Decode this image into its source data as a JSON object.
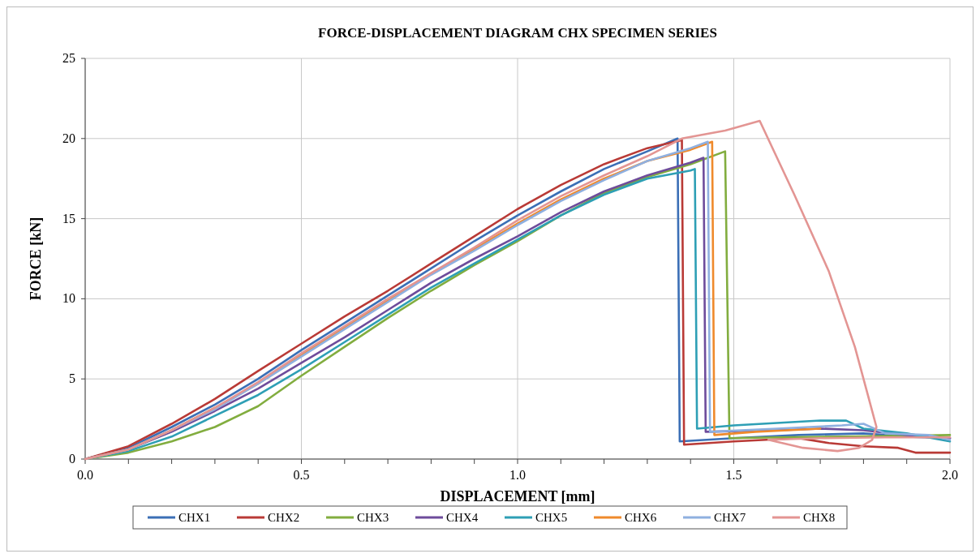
{
  "chart_data": {
    "type": "line",
    "title": "FORCE-DISPLACEMENT DIAGRAM CHX  SPECIMEN SERIES",
    "xlabel": "DISPLACEMENT [mm]",
    "ylabel": "FORCE  [kN]",
    "xlim": [
      0,
      2
    ],
    "ylim": [
      0,
      25
    ],
    "xticks": [
      {
        "value": 0,
        "label": "0.0"
      },
      {
        "value": 0.1,
        "label": null
      },
      {
        "value": 0.2,
        "label": null
      },
      {
        "value": 0.3,
        "label": null
      },
      {
        "value": 0.4,
        "label": null
      },
      {
        "value": 0.5,
        "label": "0.5"
      },
      {
        "value": 0.6,
        "label": null
      },
      {
        "value": 0.7,
        "label": null
      },
      {
        "value": 0.8,
        "label": null
      },
      {
        "value": 0.9,
        "label": null
      },
      {
        "value": 1,
        "label": "1.0"
      },
      {
        "value": 1.1,
        "label": null
      },
      {
        "value": 1.2,
        "label": null
      },
      {
        "value": 1.3,
        "label": null
      },
      {
        "value": 1.4,
        "label": null
      },
      {
        "value": 1.5,
        "label": "1.5"
      },
      {
        "value": 1.6,
        "label": null
      },
      {
        "value": 1.7,
        "label": null
      },
      {
        "value": 1.8,
        "label": null
      },
      {
        "value": 1.9,
        "label": null
      },
      {
        "value": 2,
        "label": "2.0"
      }
    ],
    "yticks": [
      0,
      5,
      10,
      15,
      20,
      25
    ],
    "grid": true,
    "legend": "bottom",
    "line_style": "solid",
    "series": [
      {
        "name": "CHX1",
        "color": "#3b6fb6",
        "x": [
          0,
          0.1,
          0.2,
          0.3,
          0.4,
          0.5,
          0.6,
          0.7,
          0.8,
          0.9,
          1.0,
          1.1,
          1.2,
          1.3,
          1.37,
          1.375,
          1.5,
          1.65,
          1.8,
          1.9,
          2.0
        ],
        "values": [
          0,
          0.7,
          2.0,
          3.4,
          5.0,
          6.8,
          8.5,
          10.2,
          11.9,
          13.6,
          15.2,
          16.7,
          18.1,
          19.2,
          20.0,
          1.1,
          1.3,
          1.5,
          1.6,
          1.4,
          1.3
        ]
      },
      {
        "name": "CHX2",
        "color": "#b93a36",
        "x": [
          0,
          0.1,
          0.2,
          0.3,
          0.4,
          0.5,
          0.6,
          0.7,
          0.8,
          0.9,
          1.0,
          1.1,
          1.2,
          1.3,
          1.38,
          1.385,
          1.5,
          1.65,
          1.72,
          1.8,
          1.88,
          1.92,
          2.0
        ],
        "values": [
          0,
          0.8,
          2.2,
          3.75,
          5.5,
          7.2,
          8.9,
          10.5,
          12.2,
          13.9,
          15.6,
          17.1,
          18.4,
          19.4,
          19.9,
          0.9,
          1.1,
          1.3,
          1.0,
          0.8,
          0.7,
          0.4,
          0.4
        ]
      },
      {
        "name": "CHX3",
        "color": "#82ad3f",
        "x": [
          0,
          0.1,
          0.2,
          0.3,
          0.4,
          0.5,
          0.6,
          0.7,
          0.8,
          0.9,
          1.0,
          1.1,
          1.2,
          1.3,
          1.4,
          1.48,
          1.49,
          1.6,
          1.75,
          1.9,
          2.0
        ],
        "values": [
          0,
          0.4,
          1.1,
          2.0,
          3.3,
          5.2,
          7.0,
          8.8,
          10.5,
          12.1,
          13.6,
          15.2,
          16.6,
          17.6,
          18.4,
          19.2,
          1.3,
          1.35,
          1.4,
          1.45,
          1.5
        ]
      },
      {
        "name": "CHX4",
        "color": "#6e4c9b",
        "x": [
          0,
          0.1,
          0.2,
          0.3,
          0.4,
          0.5,
          0.6,
          0.7,
          0.8,
          0.9,
          1.0,
          1.1,
          1.2,
          1.3,
          1.4,
          1.43,
          1.435,
          1.6,
          1.7,
          1.8,
          1.9,
          2.0
        ],
        "values": [
          0,
          0.6,
          1.7,
          3.0,
          4.4,
          6.0,
          7.6,
          9.3,
          11.0,
          12.5,
          13.9,
          15.4,
          16.7,
          17.7,
          18.5,
          18.8,
          1.7,
          1.8,
          1.9,
          1.8,
          1.5,
          1.3
        ]
      },
      {
        "name": "CHX5",
        "color": "#2e9fb5",
        "x": [
          0,
          0.1,
          0.2,
          0.3,
          0.4,
          0.5,
          0.6,
          0.7,
          0.8,
          0.9,
          1.0,
          1.1,
          1.2,
          1.3,
          1.4,
          1.41,
          1.415,
          1.5,
          1.6,
          1.7,
          1.76,
          1.8,
          1.9,
          2.0
        ],
        "values": [
          0,
          0.5,
          1.4,
          2.7,
          4.0,
          5.6,
          7.3,
          9.0,
          10.7,
          12.2,
          13.7,
          15.2,
          16.5,
          17.5,
          18.0,
          18.1,
          1.9,
          2.1,
          2.25,
          2.4,
          2.4,
          1.9,
          1.6,
          1.1
        ]
      },
      {
        "name": "CHX6",
        "color": "#ef8a2c",
        "x": [
          0,
          0.1,
          0.2,
          0.3,
          0.4,
          0.5,
          0.6,
          0.7,
          0.8,
          0.9,
          1.0,
          1.1,
          1.2,
          1.3,
          1.4,
          1.45,
          1.455,
          1.55,
          1.7
        ],
        "values": [
          0,
          0.6,
          1.8,
          3.2,
          4.7,
          6.5,
          8.2,
          9.9,
          11.6,
          13.1,
          14.7,
          16.2,
          17.5,
          18.6,
          19.3,
          19.8,
          1.5,
          1.7,
          1.9
        ]
      },
      {
        "name": "CHX7",
        "color": "#8fb0e0",
        "x": [
          0,
          0.1,
          0.2,
          0.3,
          0.4,
          0.5,
          0.6,
          0.7,
          0.8,
          0.9,
          1.0,
          1.1,
          1.2,
          1.3,
          1.4,
          1.44,
          1.445,
          1.6,
          1.75,
          1.8,
          1.85,
          1.95,
          2.0
        ],
        "values": [
          0,
          0.6,
          1.8,
          3.1,
          4.7,
          6.4,
          8.1,
          9.8,
          11.5,
          13.0,
          14.6,
          16.1,
          17.4,
          18.6,
          19.4,
          19.8,
          1.7,
          1.9,
          2.1,
          2.2,
          1.6,
          1.5,
          1.2
        ]
      },
      {
        "name": "CHX8",
        "color": "#e39593",
        "x": [
          0,
          0.1,
          0.2,
          0.3,
          0.4,
          0.5,
          0.6,
          0.7,
          0.8,
          0.9,
          1.0,
          1.1,
          1.2,
          1.3,
          1.38,
          1.48,
          1.56,
          1.64,
          1.72,
          1.78,
          1.81,
          1.83,
          1.82,
          1.79,
          1.74,
          1.66,
          1.58,
          1.7,
          1.85,
          2.0
        ],
        "values": [
          0,
          0.6,
          1.8,
          3.2,
          4.8,
          6.6,
          8.3,
          10.0,
          11.6,
          13.2,
          14.9,
          16.4,
          17.7,
          18.9,
          20.0,
          20.5,
          21.1,
          16.5,
          11.7,
          7.0,
          4.0,
          2.0,
          1.2,
          0.7,
          0.5,
          0.7,
          1.2,
          1.3,
          1.35,
          1.35
        ]
      }
    ]
  }
}
